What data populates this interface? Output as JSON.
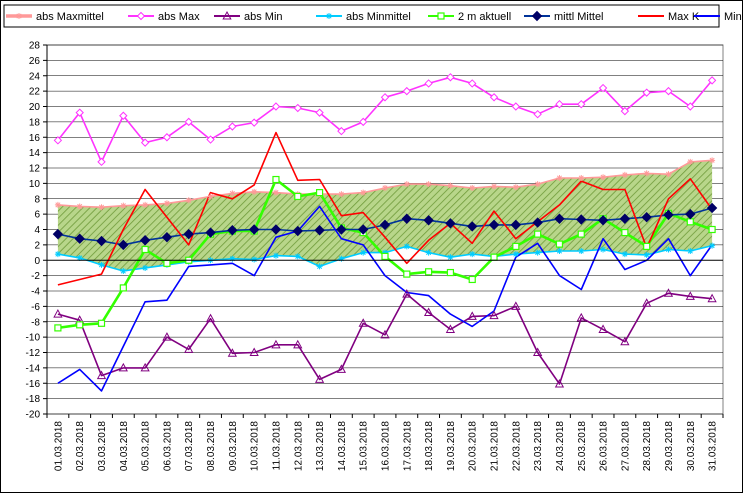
{
  "chart_data": {
    "type": "line",
    "title": "",
    "xlabel": "",
    "ylabel": "",
    "ylim": [
      -20,
      28
    ],
    "yticks": [
      -20,
      -18,
      -16,
      -14,
      -12,
      -10,
      -8,
      -6,
      -4,
      -2,
      0,
      2,
      4,
      6,
      8,
      10,
      12,
      14,
      16,
      18,
      20,
      22,
      24,
      26,
      28
    ],
    "grid": "horizontal",
    "legend_position": "top",
    "categories": [
      "01.03.2018",
      "02.03.2018",
      "03.03.2018",
      "04.03.2018",
      "05.03.2018",
      "06.03.2018",
      "07.03.2018",
      "08.03.2018",
      "09.03.2018",
      "10.03.2018",
      "11.03.2018",
      "12.03.2018",
      "13.03.2018",
      "14.03.2018",
      "15.03.2018",
      "16.03.2018",
      "17.03.2018",
      "18.03.2018",
      "19.03.2018",
      "20.03.2018",
      "21.03.2018",
      "22.03.2018",
      "23.03.2018",
      "24.03.2018",
      "25.03.2018",
      "26.03.2018",
      "27.03.2018",
      "28.03.2018",
      "29.03.2018",
      "30.03.2018",
      "31.03.2018"
    ],
    "band": {
      "upper_series": "abs Maxmittel",
      "lower_series": "abs Minmittel",
      "fill": "#b8d68a",
      "hatch": "#6f9a3a"
    },
    "series": [
      {
        "name": "abs Maxmittel",
        "color": "#ff9999",
        "marker": "asterisk",
        "values": [
          7.2,
          7.0,
          6.9,
          7.1,
          7.2,
          7.4,
          7.8,
          8.3,
          8.7,
          8.9,
          8.8,
          8.6,
          8.6,
          8.6,
          8.8,
          9.4,
          9.9,
          9.9,
          9.7,
          9.4,
          9.6,
          9.5,
          9.9,
          10.7,
          10.7,
          10.8,
          11.1,
          11.3,
          11.2,
          12.8,
          13.0
        ]
      },
      {
        "name": "abs Max",
        "color": "#ff33ff",
        "marker": "diamond-open",
        "values": [
          15.6,
          19.2,
          12.8,
          18.8,
          15.3,
          16.0,
          18.0,
          15.7,
          17.4,
          17.9,
          20.0,
          19.8,
          19.2,
          16.8,
          18.0,
          21.2,
          22.0,
          23.0,
          23.8,
          23.0,
          21.2,
          20.0,
          19.0,
          20.3,
          20.3,
          22.4,
          19.4,
          21.8,
          22.0,
          20.0,
          23.4
        ]
      },
      {
        "name": "abs Min",
        "color": "#800080",
        "marker": "triangle-open",
        "values": [
          -7.0,
          -7.8,
          -15.0,
          -14.0,
          -14.0,
          -10.0,
          -11.6,
          -7.6,
          -12.1,
          -12.0,
          -11.0,
          -11.0,
          -15.5,
          -14.2,
          -8.2,
          -9.7,
          -4.4,
          -6.8,
          -9.0,
          -7.3,
          -7.2,
          -6.0,
          -12.0,
          -16.1,
          -7.5,
          -9.0,
          -10.6,
          -5.6,
          -4.3,
          -4.7,
          -5.0
        ]
      },
      {
        "name": "abs Minmittel",
        "color": "#00ccff",
        "marker": "asterisk",
        "values": [
          0.8,
          0.3,
          -0.6,
          -1.4,
          -1.0,
          -0.6,
          -0.2,
          0.0,
          0.2,
          0.1,
          0.6,
          0.5,
          -0.8,
          0.2,
          1.0,
          1.0,
          1.8,
          1.0,
          0.4,
          0.8,
          0.5,
          0.8,
          1.0,
          1.2,
          1.2,
          1.4,
          0.8,
          0.7,
          1.4,
          1.2,
          1.9
        ]
      },
      {
        "name": "2 m aktuell",
        "color": "#33ff00",
        "marker": "square-open",
        "values": [
          -8.8,
          -8.4,
          -8.2,
          -3.6,
          1.4,
          -0.4,
          0.0,
          3.4,
          3.8,
          3.8,
          10.5,
          8.3,
          8.8,
          4.2,
          3.6,
          0.5,
          -1.8,
          -1.5,
          -1.6,
          -2.5,
          0.4,
          1.8,
          3.4,
          2.1,
          3.4,
          5.4,
          3.6,
          1.8,
          6.1,
          5.0,
          4.0
        ]
      },
      {
        "name": "mittl Mittel",
        "color": "#003399",
        "marker": "diamond-filled",
        "values": [
          3.4,
          2.8,
          2.5,
          2.0,
          2.6,
          3.0,
          3.4,
          3.6,
          3.9,
          4.0,
          4.0,
          3.8,
          3.9,
          4.0,
          4.0,
          4.6,
          5.4,
          5.2,
          4.8,
          4.4,
          4.6,
          4.6,
          4.9,
          5.4,
          5.3,
          5.2,
          5.4,
          5.6,
          5.9,
          6.0,
          6.8
        ]
      },
      {
        "name": "Max K",
        "color": "#ff0000",
        "marker": "none",
        "values": [
          -3.2,
          null,
          -1.8,
          4.0,
          9.2,
          null,
          2.0,
          8.8,
          8.0,
          9.8,
          16.6,
          10.4,
          10.5,
          5.8,
          6.2,
          3.0,
          -0.4,
          2.6,
          4.8,
          2.2,
          6.4,
          2.8,
          5.0,
          7.2,
          10.3,
          9.2,
          9.2,
          1.6,
          8.0,
          10.6,
          6.6
        ]
      },
      {
        "name": "Min K",
        "color": "#0000ff",
        "marker": "none",
        "values": [
          -16.0,
          -14.2,
          -17.0,
          -11.2,
          -5.4,
          -5.2,
          -0.8,
          -0.6,
          -0.4,
          -2.0,
          3.0,
          3.8,
          7.0,
          2.8,
          2.0,
          -2.0,
          -4.2,
          -4.6,
          -7.0,
          -8.6,
          -6.6,
          0.4,
          2.2,
          -2.0,
          -3.8,
          2.8,
          -1.2,
          0.0,
          2.8,
          -2.0,
          2.0
        ]
      }
    ]
  }
}
